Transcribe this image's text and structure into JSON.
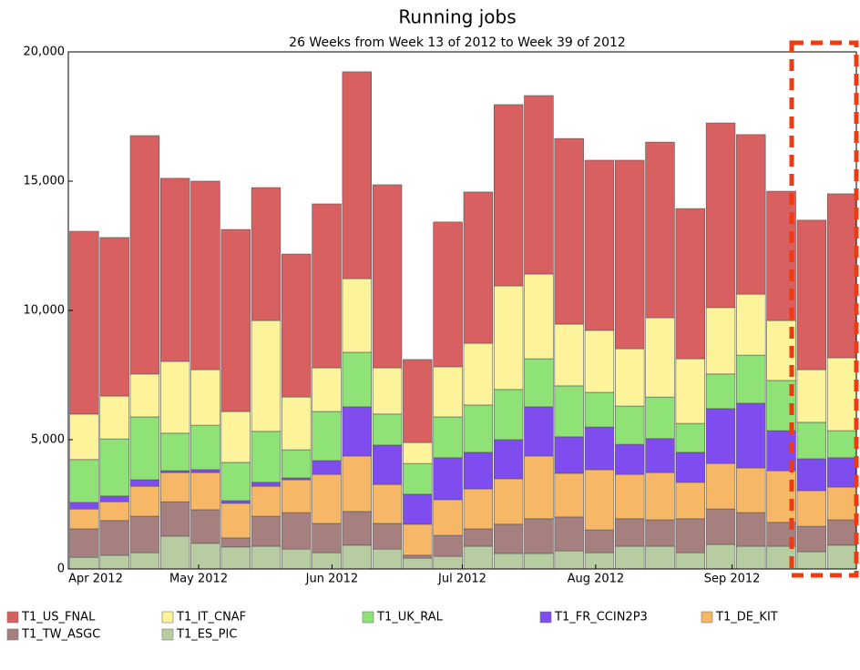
{
  "chart_data": {
    "type": "stacked_bar",
    "title": "Running jobs",
    "subtitle": "26 Weeks from Week 13 of 2012 to Week 39 of 2012",
    "categories": [
      null,
      null,
      null,
      null,
      null,
      null,
      null,
      null,
      null,
      null,
      null,
      null,
      null,
      null,
      null,
      null,
      null,
      null,
      null,
      null,
      null,
      null,
      null,
      null,
      null,
      null
    ],
    "xlim": [
      0,
      26
    ],
    "xticks": [
      {
        "value": 0,
        "label": "Apr 2012"
      },
      {
        "value": 4.3,
        "label": "May 2012"
      },
      {
        "value": 8.7,
        "label": "Jun 2012"
      },
      {
        "value": 13,
        "label": "Jul 2012"
      },
      {
        "value": 17.4,
        "label": "Aug 2012"
      },
      {
        "value": 21.9,
        "label": "Sep 2012"
      }
    ],
    "ylim": [
      0,
      20000
    ],
    "yticks": [
      0,
      {
        "value": 5000,
        "label": "5,000"
      },
      {
        "value": 10000,
        "label": "10,000"
      },
      {
        "value": 15000,
        "label": "15,000"
      },
      {
        "value": 20000,
        "label": "20,000"
      }
    ],
    "grid": false,
    "legend": "bottom",
    "series": [
      {
        "name": "T1_ES_PIC",
        "color": "#b8cca2",
        "values": [
          450,
          530,
          630,
          1270,
          990,
          850,
          880,
          770,
          630,
          920,
          770,
          420,
          490,
          880,
          600,
          600,
          700,
          630,
          880,
          880,
          630,
          950,
          880,
          880,
          670,
          920
        ]
      },
      {
        "name": "T1_TW_ASGC",
        "color": "#a67f7f",
        "values": [
          1100,
          1340,
          1410,
          1330,
          1300,
          350,
          1160,
          1410,
          1130,
          1300,
          990,
          110,
          810,
          670,
          1130,
          1340,
          1310,
          880,
          1060,
          1020,
          1310,
          1370,
          1300,
          920,
          980,
          980
        ]
      },
      {
        "name": "T1_DE_KIT",
        "color": "#f6b866",
        "values": [
          770,
          730,
          1160,
          1130,
          1440,
          1340,
          1160,
          1270,
          1900,
          2150,
          1510,
          1200,
          1380,
          1550,
          1760,
          2430,
          1690,
          2330,
          1720,
          1830,
          1410,
          1760,
          1730,
          2000,
          1380,
          1270
        ]
      },
      {
        "name": "T1_FR_CCIN2P3",
        "color": "#7f4cf0",
        "values": [
          250,
          220,
          250,
          70,
          110,
          100,
          150,
          70,
          530,
          1900,
          1520,
          1160,
          1620,
          1410,
          1510,
          1900,
          1410,
          1650,
          1160,
          1310,
          1160,
          2120,
          2500,
          1550,
          1230,
          1130
        ]
      },
      {
        "name": "T1_UK_RAL",
        "color": "#8ee276",
        "values": [
          1660,
          2210,
          2430,
          1450,
          1720,
          1480,
          1970,
          1090,
          1900,
          2110,
          1200,
          1190,
          1580,
          1830,
          1940,
          1860,
          1970,
          1340,
          1480,
          1610,
          1120,
          1340,
          1860,
          1940,
          1410,
          1050
        ]
      },
      {
        "name": "T1_IT_CNAF",
        "color": "#fdf39a",
        "values": [
          1760,
          1660,
          1660,
          2780,
          2150,
          1970,
          4290,
          2040,
          1690,
          2850,
          1790,
          810,
          1940,
          2390,
          4010,
          3280,
          2390,
          2400,
          2220,
          3070,
          2500,
          2570,
          2360,
          2320,
          2040,
          2820
        ]
      },
      {
        "name": "T1_US_FNAL",
        "color": "#d96060",
        "values": [
          7070,
          6130,
          9220,
          7080,
          7290,
          7040,
          5140,
          5530,
          6340,
          8000,
          7080,
          3210,
          5600,
          5850,
          7010,
          6900,
          7180,
          6580,
          7290,
          6790,
          5810,
          7140,
          6170,
          5000,
          5780,
          6340
        ]
      }
    ]
  }
}
